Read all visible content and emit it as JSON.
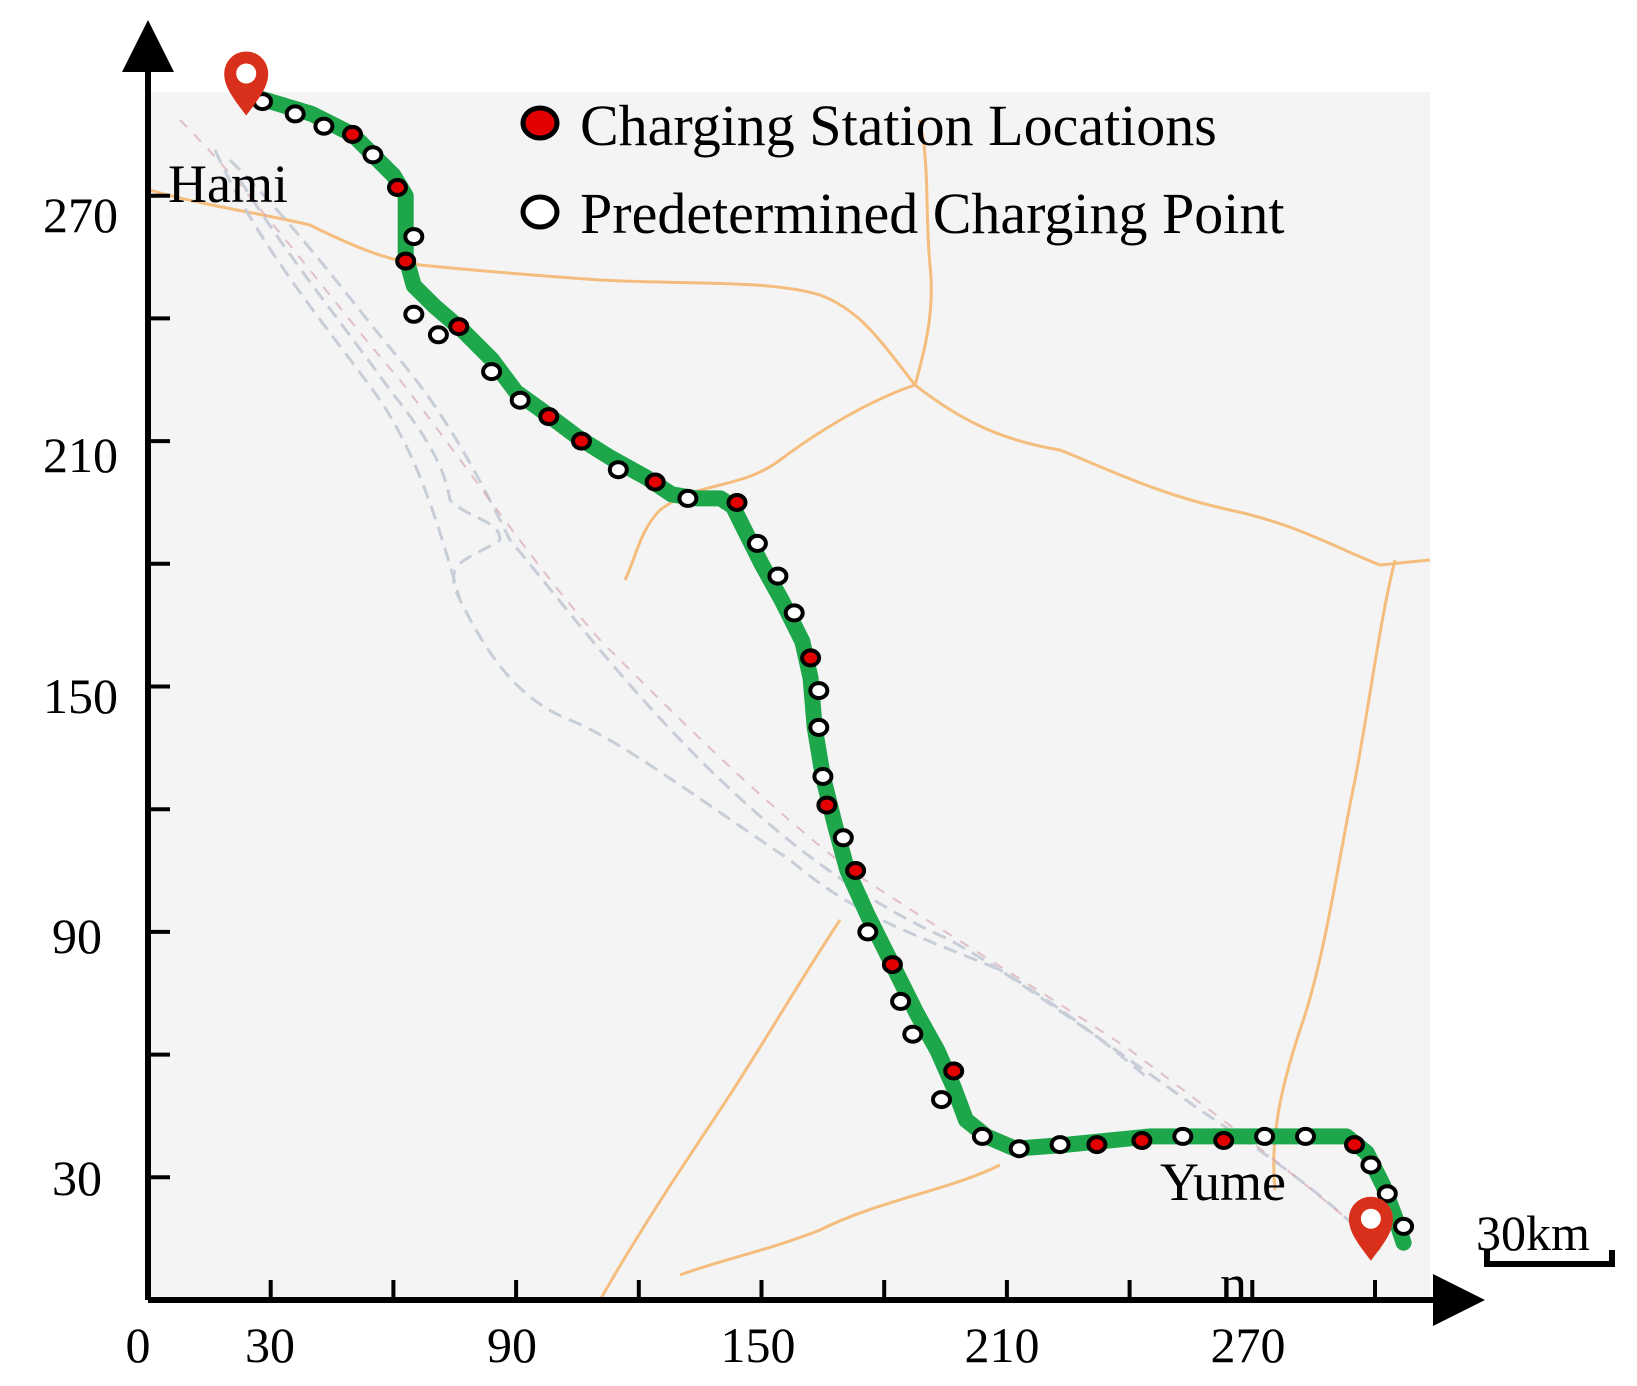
{
  "map": {
    "x_axis": {
      "ticks": [
        "0",
        "30",
        "90",
        "150",
        "210",
        "270"
      ],
      "minor_ticks": [
        60,
        120,
        180,
        240,
        300
      ]
    },
    "y_axis": {
      "ticks": [
        "30",
        "90",
        "150",
        "210",
        "270"
      ],
      "minor_ticks": [
        60,
        120,
        180,
        240
      ]
    },
    "legend": {
      "station_label": "Charging Station Locations",
      "point_label": "Predetermined Charging Point"
    },
    "cities": {
      "start": "Hami",
      "end_line1": "Yume",
      "end_line2": "n"
    },
    "scale_bar": "30km",
    "colors": {
      "route": "#1ea64a",
      "station_fill": "#e30000",
      "point_fill": "#ffffff",
      "marker": "#d9301c",
      "road": "#f5b46a",
      "rail": "#c3cad6",
      "background": "#f4f4f4"
    },
    "route_points": [
      [
        23,
        295
      ],
      [
        30,
        293
      ],
      [
        40,
        290
      ],
      [
        50,
        285
      ],
      [
        55,
        280
      ],
      [
        60,
        275
      ],
      [
        63,
        270
      ],
      [
        63,
        262
      ],
      [
        63,
        255
      ],
      [
        65,
        248
      ],
      [
        70,
        243
      ],
      [
        77,
        237
      ],
      [
        84,
        230
      ],
      [
        90,
        222
      ],
      [
        97,
        217
      ],
      [
        105,
        211
      ],
      [
        113,
        206
      ],
      [
        122,
        201
      ],
      [
        128,
        197
      ],
      [
        134,
        196
      ],
      [
        140,
        196
      ],
      [
        143,
        194
      ],
      [
        146,
        188
      ],
      [
        150,
        180
      ],
      [
        155,
        171
      ],
      [
        160,
        161
      ],
      [
        162,
        152
      ],
      [
        163,
        140
      ],
      [
        165,
        128
      ],
      [
        168,
        116
      ],
      [
        171,
        105
      ],
      [
        176,
        94
      ],
      [
        182,
        82
      ],
      [
        188,
        70
      ],
      [
        193,
        61
      ],
      [
        197,
        52
      ],
      [
        200,
        44
      ],
      [
        205,
        40
      ],
      [
        212,
        37
      ],
      [
        225,
        38
      ],
      [
        245,
        40
      ],
      [
        260,
        40
      ],
      [
        280,
        40
      ],
      [
        293,
        40
      ],
      [
        298,
        36
      ],
      [
        302,
        28
      ],
      [
        305,
        20
      ],
      [
        307,
        14
      ]
    ],
    "stations": [
      [
        50,
        285
      ],
      [
        61,
        272
      ],
      [
        63,
        254
      ],
      [
        76,
        238
      ],
      [
        98,
        216
      ],
      [
        106,
        210
      ],
      [
        124,
        200
      ],
      [
        144,
        195
      ],
      [
        162,
        157
      ],
      [
        166,
        121
      ],
      [
        173,
        105
      ],
      [
        182,
        82
      ],
      [
        197,
        56
      ],
      [
        232,
        38
      ],
      [
        243,
        39
      ],
      [
        263,
        39
      ],
      [
        295,
        38
      ]
    ],
    "points": [
      [
        28,
        293
      ],
      [
        36,
        290
      ],
      [
        43,
        287
      ],
      [
        55,
        280
      ],
      [
        65,
        260
      ],
      [
        65,
        241
      ],
      [
        71,
        236
      ],
      [
        84,
        227
      ],
      [
        91,
        220
      ],
      [
        115,
        203
      ],
      [
        132,
        196
      ],
      [
        149,
        185
      ],
      [
        154,
        177
      ],
      [
        158,
        168
      ],
      [
        164,
        149
      ],
      [
        164,
        140
      ],
      [
        165,
        128
      ],
      [
        170,
        113
      ],
      [
        176,
        90
      ],
      [
        184,
        73
      ],
      [
        187,
        65
      ],
      [
        194,
        49
      ],
      [
        204,
        40
      ],
      [
        213,
        37
      ],
      [
        223,
        38
      ],
      [
        253,
        40
      ],
      [
        273,
        40
      ],
      [
        283,
        40
      ],
      [
        299,
        33
      ],
      [
        303,
        26
      ],
      [
        307,
        18
      ]
    ],
    "start_marker": [
      24,
      295
    ],
    "end_marker": [
      299,
      15
    ]
  }
}
